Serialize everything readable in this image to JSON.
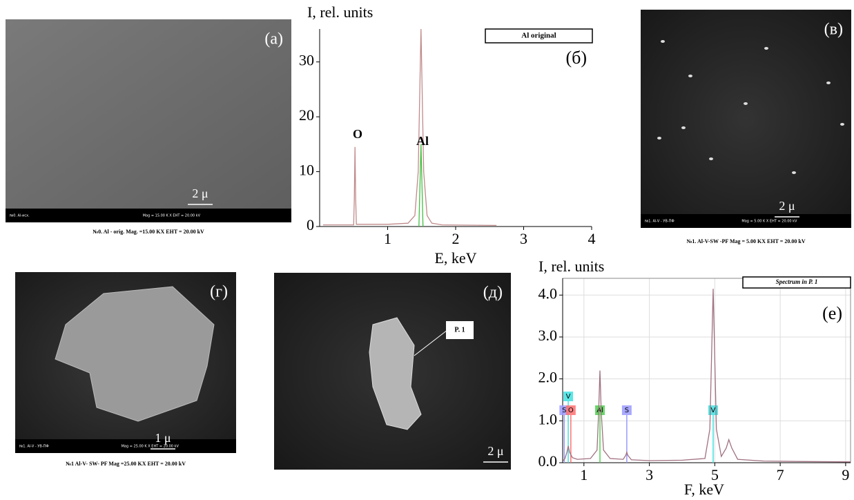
{
  "chart_data": [
    {
      "type": "line",
      "panel_label": "(б)",
      "ylabel": "I, rel. units",
      "xlabel": "E, keV",
      "xlim": [
        0,
        4
      ],
      "xticks": [
        1,
        2,
        3,
        4
      ],
      "ylim": [
        0,
        36
      ],
      "yticks": [
        0,
        10,
        20,
        30
      ],
      "grid": false,
      "annotations": [
        "O",
        "Al"
      ],
      "series": [
        {
          "name": "Al original",
          "color": "#c08a8a",
          "x": [
            0.05,
            0.5,
            0.51,
            0.52,
            0.53,
            0.54,
            1.0,
            1.3,
            1.4,
            1.45,
            1.49,
            1.53,
            1.58,
            1.65,
            1.8,
            2.6
          ],
          "values": [
            0.3,
            0.3,
            5,
            14.5,
            5,
            0.4,
            0.4,
            0.6,
            2,
            10,
            36,
            10,
            2,
            0.6,
            0.3,
            0.2
          ]
        },
        {
          "color": "#40c040",
          "x": [
            1.46,
            1.49,
            1.52
          ],
          "values": [
            0,
            15,
            0
          ]
        }
      ]
    },
    {
      "type": "line",
      "panel_label": "(е)",
      "ylabel": "I, rel. units",
      "xlabel": "F, keV",
      "xlim": [
        0.35,
        9.15
      ],
      "xticks": [
        1,
        3,
        5,
        7,
        9
      ],
      "ylim": [
        0,
        4.4
      ],
      "yticks": [
        {
          "value": 0,
          "label": "0.0"
        },
        {
          "value": 1,
          "label": "1.0"
        },
        {
          "value": 2,
          "label": "2.0"
        },
        {
          "value": 3,
          "label": "3.0"
        },
        {
          "value": 4,
          "label": "4.0"
        }
      ],
      "grid": true,
      "markers": [
        {
          "label": "S",
          "x": 0.4,
          "color": "#9a9aff"
        },
        {
          "label": "V",
          "x": 0.52,
          "color": "#40e0e0"
        },
        {
          "label": "O",
          "x": 0.6,
          "color": "#ff7070"
        },
        {
          "label": "Al",
          "x": 1.49,
          "color": "#50d050"
        },
        {
          "label": "S",
          "x": 2.31,
          "color": "#9a9aff"
        },
        {
          "label": "V",
          "x": 4.95,
          "color": "#40e0e0"
        }
      ],
      "series": [
        {
          "name": "Spectrum in P. 1",
          "color": "#a07080",
          "x": [
            0.37,
            0.42,
            0.48,
            0.52,
            0.56,
            0.65,
            0.8,
            1.2,
            1.4,
            1.45,
            1.49,
            1.53,
            1.6,
            1.8,
            2.2,
            2.28,
            2.31,
            2.34,
            2.45,
            3.0,
            4.0,
            4.7,
            4.85,
            4.95,
            5.05,
            5.2,
            5.35,
            5.43,
            5.52,
            5.7,
            6.5,
            7.5,
            9.15
          ],
          "values": [
            0.05,
            0.1,
            0.25,
            0.4,
            0.25,
            0.12,
            0.08,
            0.1,
            0.3,
            1.2,
            2.2,
            1.2,
            0.3,
            0.1,
            0.08,
            0.18,
            0.25,
            0.18,
            0.07,
            0.05,
            0.06,
            0.1,
            0.8,
            4.15,
            0.8,
            0.15,
            0.35,
            0.55,
            0.35,
            0.08,
            0.04,
            0.03,
            0.02
          ]
        }
      ]
    }
  ],
  "images": [
    {
      "label": "(a)",
      "scale": "2 μ",
      "bar_text": "№0. Al-исх.",
      "bar_info": "Mag = 15.00 K X  EHT = 20.00 kV",
      "caption": "№0. Al - orig.      Mag. =15.00 KX EHT = 20.00 kV"
    },
    {
      "label": "(в)",
      "scale": "2 μ",
      "bar_text": "№1. Al-V - УВ-ПФ",
      "bar_info": "Mag = 5.00 K X  EHT = 20.00 kV",
      "caption": "№1. Al-V-SW -PF Mag = 5.00 KX EHT = 20.00 kV"
    },
    {
      "label": "(г)",
      "scale": "1 μ",
      "bar_text": "№1. Al-V - УВ-ПФ",
      "bar_info": "Mag = 25.00 K X  EHT = 20.00 kV",
      "caption": "№1 Al-V- SW- PF  Mag =25.00 KX EHT = 20.00 kV"
    },
    {
      "label": "(д)",
      "scale": "2 μ",
      "point": "P. 1"
    }
  ]
}
